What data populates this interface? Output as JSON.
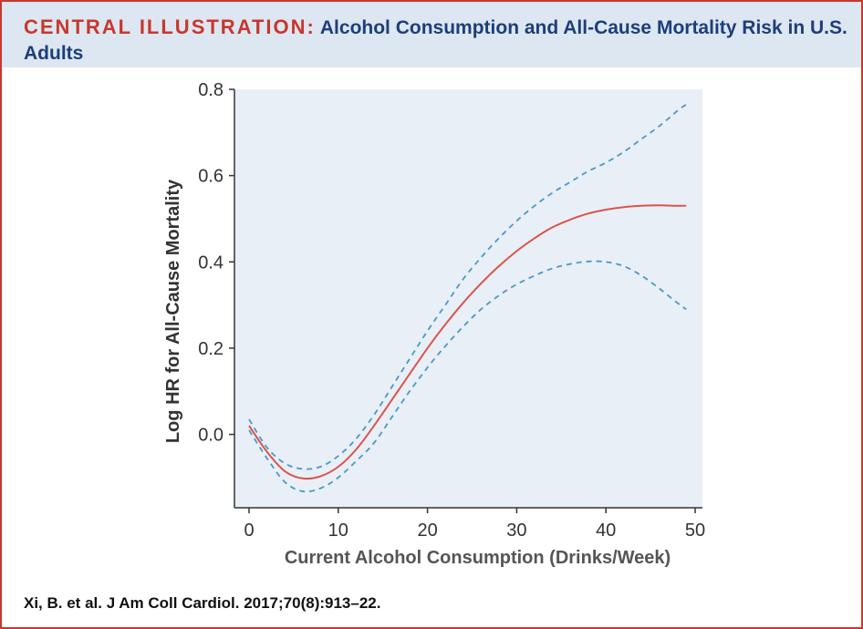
{
  "header": {
    "label": "CENTRAL ILLUSTRATION:",
    "title": "Alcohol Consumption and All-Cause Mortality Risk in U.S. Adults"
  },
  "citation": "Xi, B. et al. J Am Coll Cardiol. 2017;70(8):913–22.",
  "colors": {
    "accent_red": "#c8372d",
    "title_blue": "#1d3e7a",
    "header_bg": "#dde7f1",
    "plot_bg": "#e9eff7",
    "ci_blue": "#4a98c8",
    "axis_text": "#333333"
  },
  "chart_data": {
    "type": "line",
    "xlabel": "Current Alcohol Consumption (Drinks/Week)",
    "ylabel": "Log HR for All-Cause Mortality",
    "xlim": [
      0,
      50
    ],
    "ylim": [
      -0.17,
      0.8
    ],
    "xticks": [
      0,
      10,
      20,
      30,
      40,
      50
    ],
    "yticks": [
      0.0,
      0.2,
      0.4,
      0.6,
      0.8
    ],
    "ytick_labels": [
      "0.0",
      "0.2",
      "0.4",
      "0.6",
      "0.8"
    ],
    "grid": false,
    "legend": "none",
    "series": [
      {
        "role": "estimate",
        "style": "solid",
        "color": "#d9554a",
        "points": [
          [
            0,
            0.02
          ],
          [
            2,
            -0.04
          ],
          [
            4,
            -0.085
          ],
          [
            6,
            -0.102
          ],
          [
            8,
            -0.097
          ],
          [
            10,
            -0.075
          ],
          [
            12,
            -0.035
          ],
          [
            14,
            0.02
          ],
          [
            16,
            0.08
          ],
          [
            18,
            0.14
          ],
          [
            20,
            0.2
          ],
          [
            22,
            0.255
          ],
          [
            24,
            0.305
          ],
          [
            26,
            0.35
          ],
          [
            28,
            0.39
          ],
          [
            30,
            0.425
          ],
          [
            32,
            0.455
          ],
          [
            34,
            0.48
          ],
          [
            36,
            0.498
          ],
          [
            38,
            0.512
          ],
          [
            40,
            0.521
          ],
          [
            42,
            0.527
          ],
          [
            44,
            0.53
          ],
          [
            46,
            0.531
          ],
          [
            48,
            0.53
          ],
          [
            49,
            0.53
          ]
        ]
      },
      {
        "role": "upper_ci",
        "style": "dashed",
        "color": "#4a98c8",
        "points": [
          [
            0,
            0.035
          ],
          [
            2,
            -0.03
          ],
          [
            4,
            -0.067
          ],
          [
            6,
            -0.08
          ],
          [
            8,
            -0.075
          ],
          [
            10,
            -0.05
          ],
          [
            12,
            -0.01
          ],
          [
            14,
            0.045
          ],
          [
            16,
            0.11
          ],
          [
            18,
            0.175
          ],
          [
            20,
            0.24
          ],
          [
            22,
            0.3
          ],
          [
            24,
            0.36
          ],
          [
            26,
            0.41
          ],
          [
            28,
            0.455
          ],
          [
            30,
            0.495
          ],
          [
            32,
            0.53
          ],
          [
            34,
            0.56
          ],
          [
            36,
            0.585
          ],
          [
            38,
            0.61
          ],
          [
            40,
            0.63
          ],
          [
            42,
            0.655
          ],
          [
            44,
            0.685
          ],
          [
            46,
            0.715
          ],
          [
            48,
            0.75
          ],
          [
            49,
            0.765
          ]
        ]
      },
      {
        "role": "lower_ci",
        "style": "dashed",
        "color": "#4a98c8",
        "points": [
          [
            0,
            0.01
          ],
          [
            2,
            -0.055
          ],
          [
            4,
            -0.11
          ],
          [
            6,
            -0.132
          ],
          [
            8,
            -0.125
          ],
          [
            10,
            -0.1
          ],
          [
            12,
            -0.062
          ],
          [
            14,
            -0.02
          ],
          [
            16,
            0.04
          ],
          [
            18,
            0.1
          ],
          [
            20,
            0.155
          ],
          [
            22,
            0.205
          ],
          [
            24,
            0.25
          ],
          [
            26,
            0.29
          ],
          [
            28,
            0.322
          ],
          [
            30,
            0.348
          ],
          [
            32,
            0.368
          ],
          [
            34,
            0.385
          ],
          [
            36,
            0.395
          ],
          [
            38,
            0.401
          ],
          [
            40,
            0.4
          ],
          [
            42,
            0.39
          ],
          [
            44,
            0.368
          ],
          [
            46,
            0.338
          ],
          [
            48,
            0.305
          ],
          [
            49,
            0.29
          ]
        ]
      }
    ]
  }
}
